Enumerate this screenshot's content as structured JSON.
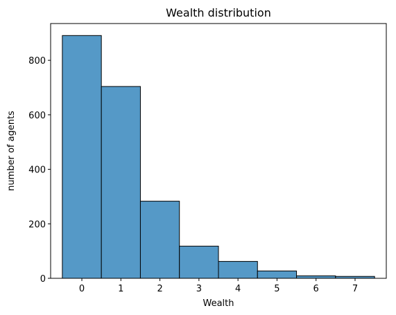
{
  "chart_data": {
    "type": "bar",
    "title": "Wealth distribution",
    "xlabel": "Wealth",
    "ylabel": "number of agents",
    "categories": [
      "0",
      "1",
      "2",
      "3",
      "4",
      "5",
      "6",
      "7"
    ],
    "x": [
      0,
      1,
      2,
      3,
      4,
      5,
      6,
      7
    ],
    "values": [
      891,
      704,
      283,
      118,
      62,
      27,
      9,
      7
    ],
    "xlim": [
      -0.8,
      7.8
    ],
    "ylim": [
      0,
      935
    ],
    "yticks": [
      0,
      200,
      400,
      600,
      800
    ],
    "xticks": [
      0,
      1,
      2,
      3,
      4,
      5,
      6,
      7
    ],
    "grid": false,
    "bar_color": "#5599c7",
    "edge_color": "#000000"
  }
}
